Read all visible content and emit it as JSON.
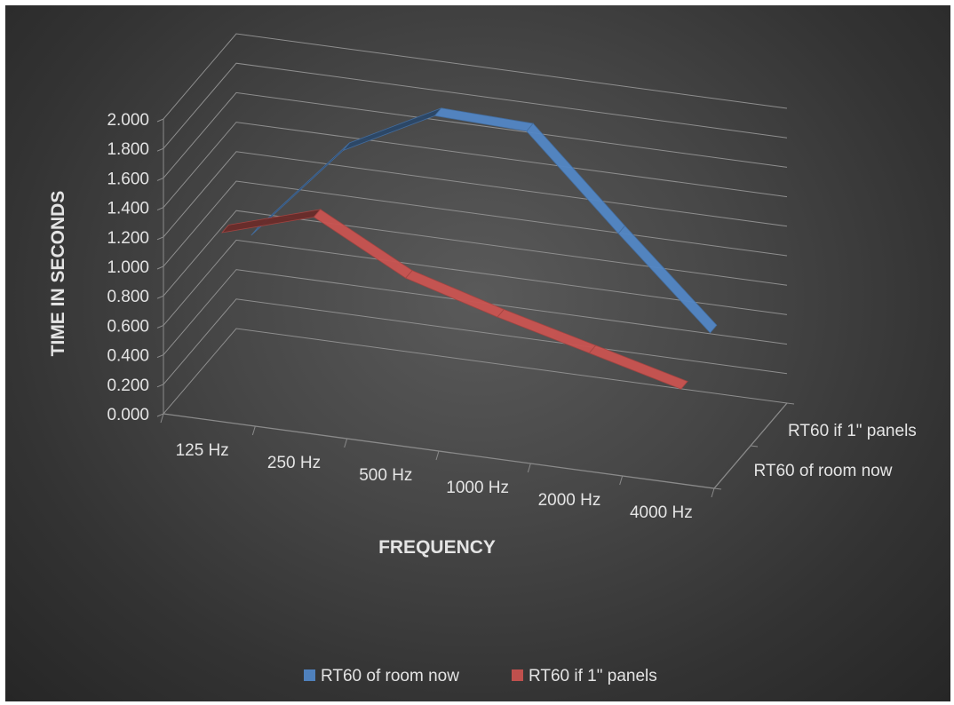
{
  "chart_data": {
    "type": "line",
    "subtype": "3d-line",
    "categories": [
      "125 Hz",
      "250 Hz",
      "500 Hz",
      "1000 Hz",
      "2000 Hz",
      "4000 Hz"
    ],
    "series": [
      {
        "name": "RT60 of room now",
        "values": [
          0.92,
          1.58,
          1.9,
          1.88,
          1.27,
          0.68
        ],
        "color": "#4f81bd"
      },
      {
        "name": "RT60 if 1\" panels",
        "values": [
          1.17,
          1.36,
          1.03,
          0.85,
          0.69,
          0.53
        ],
        "color": "#c0504d"
      }
    ],
    "y_ticks": [
      "0.000",
      "0.200",
      "0.400",
      "0.600",
      "0.800",
      "1.000",
      "1.200",
      "1.400",
      "1.600",
      "1.800",
      "2.000"
    ],
    "ylim": [
      0,
      2
    ],
    "xlabel": "FREQUENCY",
    "ylabel": "TIME IN SECONDS",
    "depth_labels": [
      "RT60 if 1\" panels",
      "RT60 of room now"
    ],
    "grid": true,
    "legend_position": "bottom",
    "background": "#404040"
  }
}
